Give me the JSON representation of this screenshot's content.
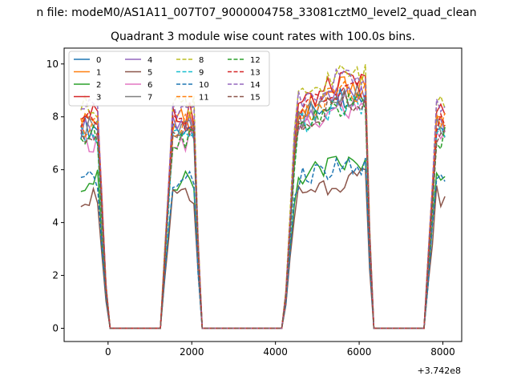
{
  "suptitle": "n file: modeM0/AS1A11_007T07_9000004758_33081cztM0_level2_quad_clean",
  "chart_data": {
    "type": "line",
    "title": "Quadrant 3 module wise count rates with 100.0s bins.",
    "xlabel": "",
    "ylabel": "",
    "x_offset_label": "+3.742e8",
    "xlim": [
      -1050,
      8450
    ],
    "ylim": [
      -0.5,
      10.6
    ],
    "xticks": [
      0,
      2000,
      4000,
      6000,
      8000
    ],
    "yticks": [
      0,
      2,
      4,
      6,
      8,
      10
    ],
    "grid": false,
    "legend": {
      "placement": "top-left",
      "columns": 4
    },
    "series": [
      {
        "name": "0",
        "color": "#1f77b4",
        "dash": "solid",
        "base": 7.6
      },
      {
        "name": "1",
        "color": "#ff7f0e",
        "dash": "solid",
        "base": 7.9
      },
      {
        "name": "2",
        "color": "#2ca02c",
        "dash": "solid",
        "base": 5.6
      },
      {
        "name": "3",
        "color": "#d62728",
        "dash": "solid",
        "base": 8.1
      },
      {
        "name": "4",
        "color": "#9467bd",
        "dash": "solid",
        "base": 7.6
      },
      {
        "name": "5",
        "color": "#8c564b",
        "dash": "solid",
        "base": 5.0
      },
      {
        "name": "6",
        "color": "#e377c2",
        "dash": "solid",
        "base": 7.1
      },
      {
        "name": "7",
        "color": "#7f7f7f",
        "dash": "solid",
        "base": 7.6
      },
      {
        "name": "8",
        "color": "#bcbd22",
        "dash": "dashed",
        "base": 8.4
      },
      {
        "name": "9",
        "color": "#17becf",
        "dash": "dashed",
        "base": 7.3
      },
      {
        "name": "10",
        "color": "#1f77b4",
        "dash": "dashed",
        "base": 5.5
      },
      {
        "name": "11",
        "color": "#ff7f0e",
        "dash": "dashed",
        "base": 7.7
      },
      {
        "name": "12",
        "color": "#2ca02c",
        "dash": "dashed",
        "base": 7.2
      },
      {
        "name": "13",
        "color": "#d62728",
        "dash": "dashed",
        "base": 7.8
      },
      {
        "name": "14",
        "color": "#9467bd",
        "dash": "dashed",
        "base": 8.3
      },
      {
        "name": "15",
        "color": "#8c564b",
        "dash": "dashed",
        "base": 7.4
      }
    ],
    "segments": [
      {
        "start": -650,
        "end": 0,
        "level": "high"
      },
      {
        "start": 0,
        "end": 1250,
        "level": 0
      },
      {
        "start": 1250,
        "end": 2250,
        "level": "high"
      },
      {
        "start": 2250,
        "end": 4200,
        "level": 0
      },
      {
        "start": 4200,
        "end": 6350,
        "level": "high_ramp"
      },
      {
        "start": 6350,
        "end": 7550,
        "level": 0
      },
      {
        "start": 7550,
        "end": 8050,
        "level": "high"
      }
    ]
  }
}
